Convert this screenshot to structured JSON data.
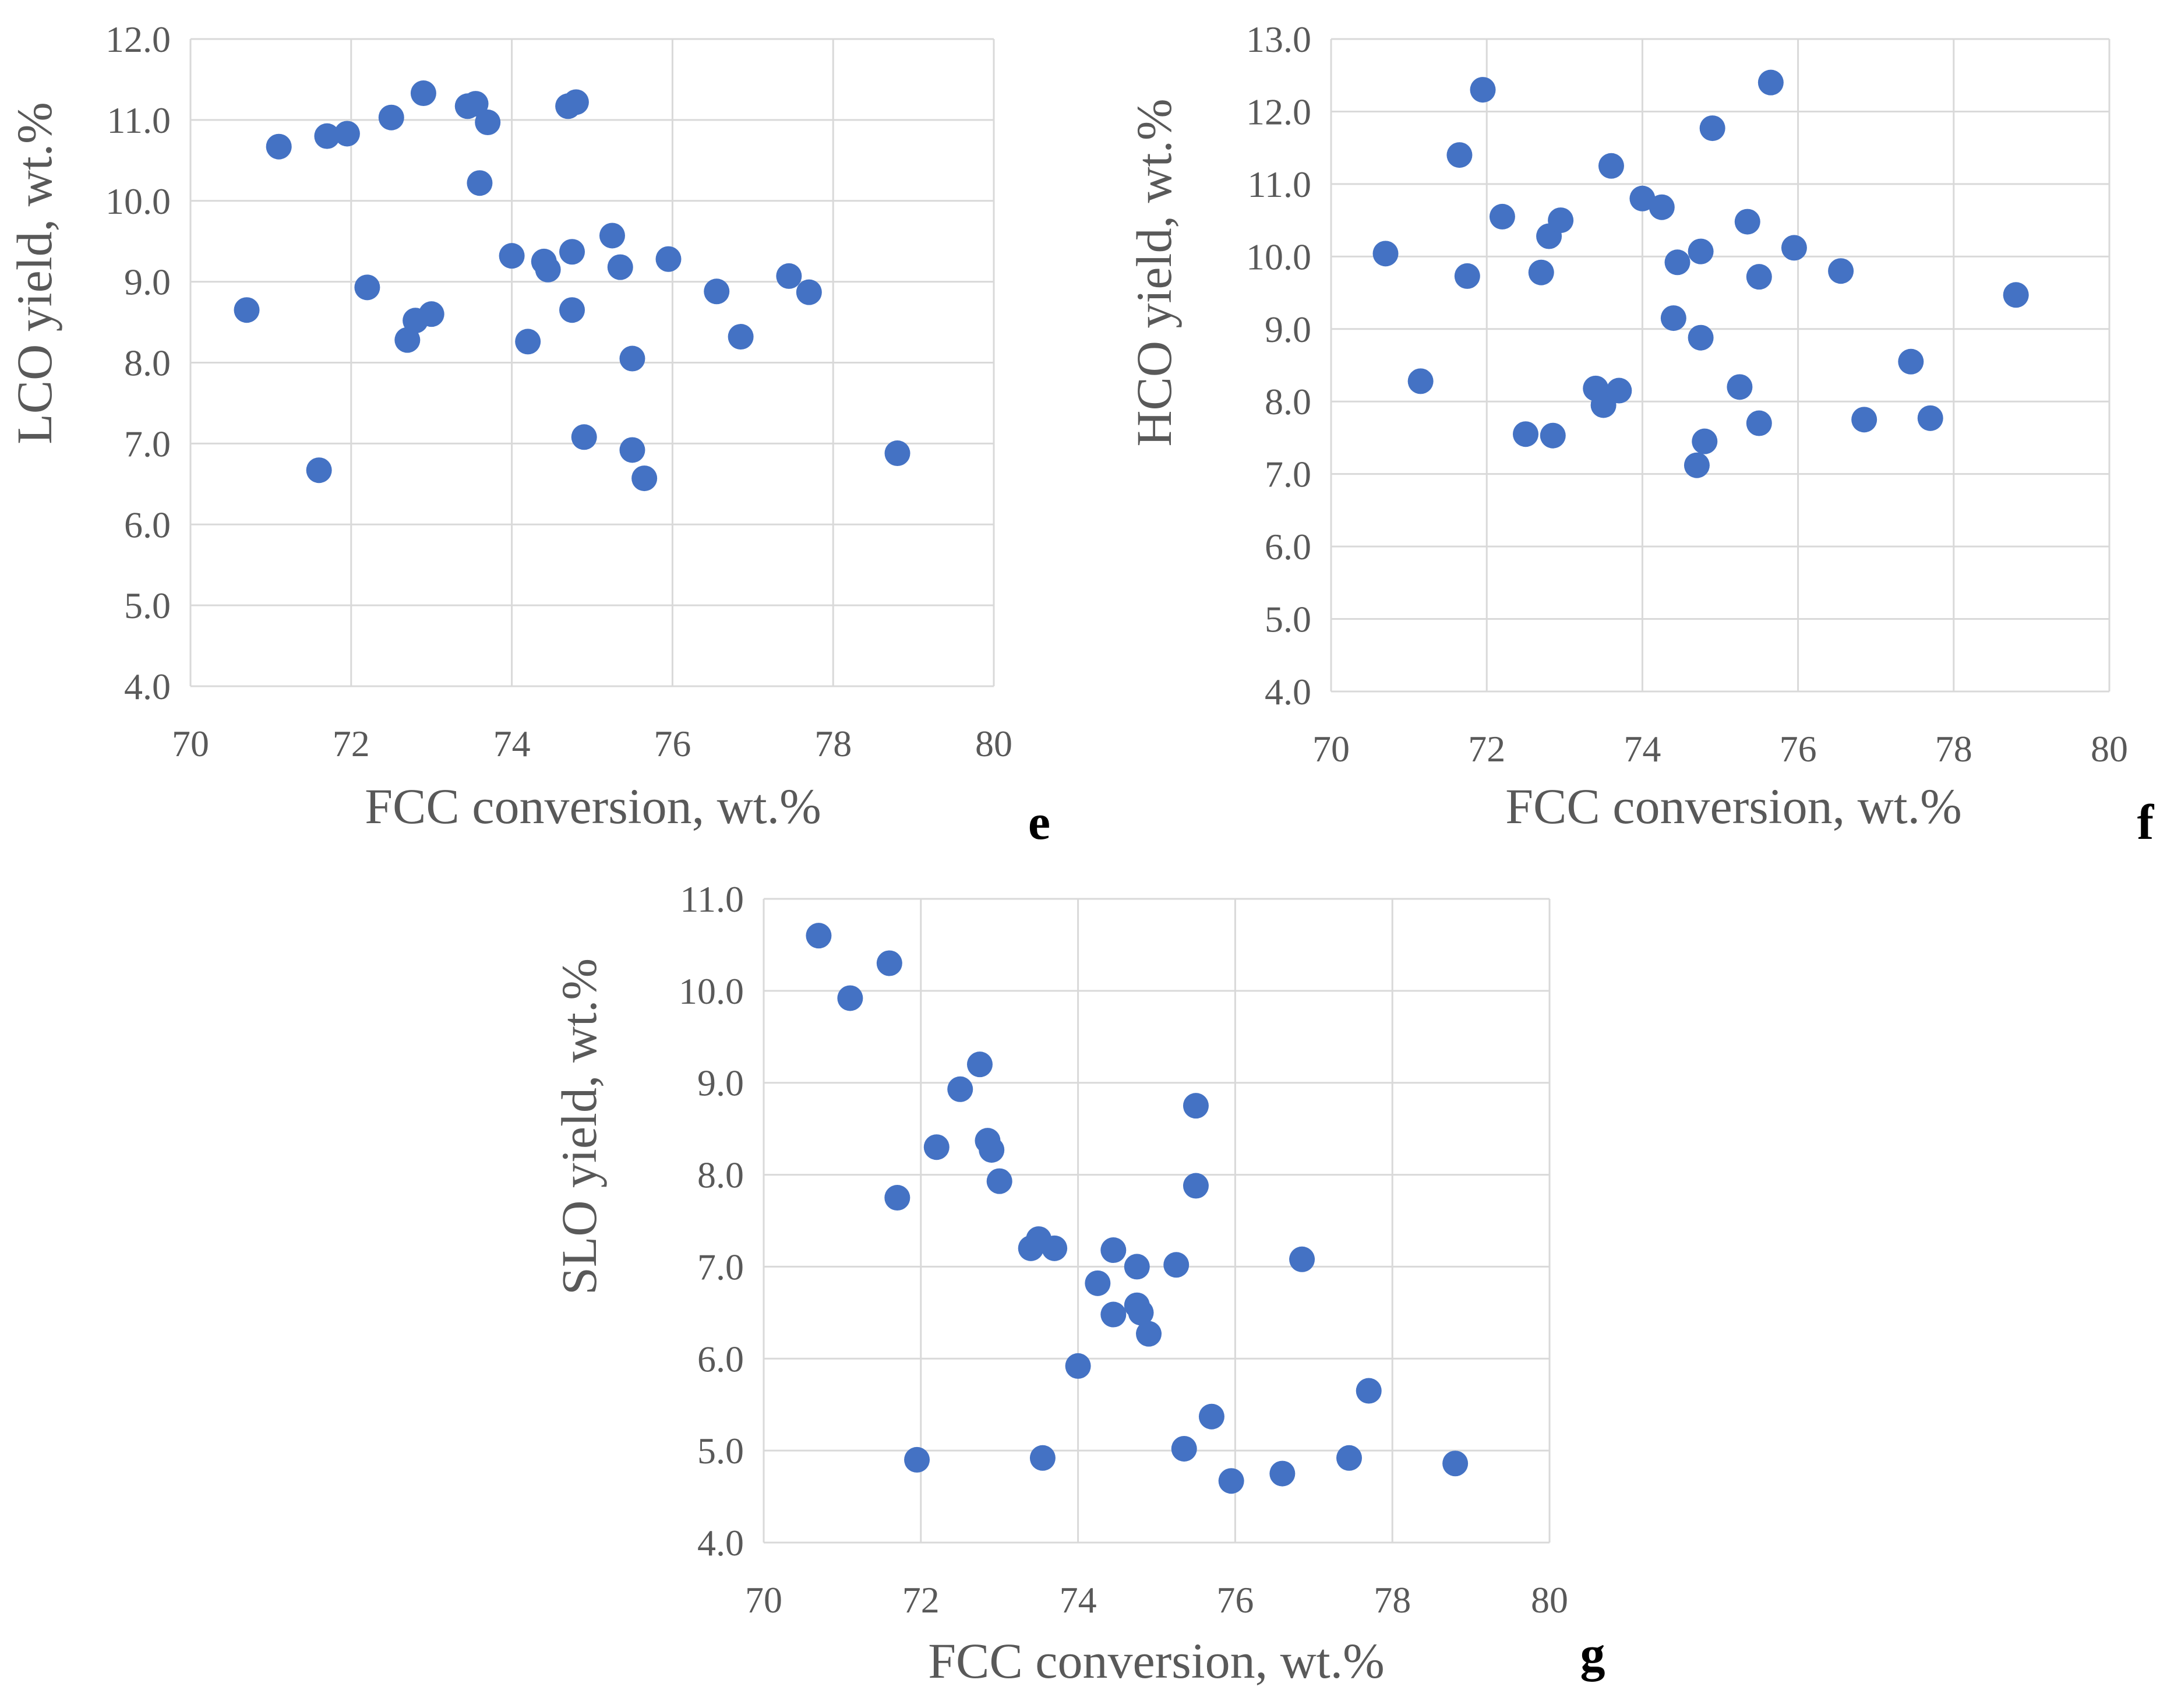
{
  "style": {
    "marker_color": "#4472C4",
    "axis_color": "#D9D9D9",
    "grid_color": "#D9D9D9",
    "text_color": "#595959",
    "letter_color": "#000000"
  },
  "chart_data": [
    {
      "id": "e",
      "type": "scatter",
      "panel_label": "e",
      "xlabel": "FCC conversion, wt.%",
      "ylabel": "LCO yield, wt.%",
      "xlim": [
        70,
        80
      ],
      "ylim": [
        4.0,
        12.0
      ],
      "x_ticks": [
        "70",
        "72",
        "74",
        "76",
        "78",
        "80"
      ],
      "y_ticks": [
        "4.0",
        "5.0",
        "6.0",
        "7.0",
        "8.0",
        "9.0",
        "10.0",
        "11.0",
        "12.0"
      ],
      "grid": "vertical+horizontal",
      "points": [
        [
          70.7,
          8.65
        ],
        [
          71.1,
          10.67
        ],
        [
          71.6,
          6.67
        ],
        [
          71.7,
          10.8
        ],
        [
          71.95,
          10.83
        ],
        [
          72.2,
          8.93
        ],
        [
          72.5,
          11.03
        ],
        [
          72.7,
          8.28
        ],
        [
          72.8,
          8.52
        ],
        [
          72.9,
          11.33
        ],
        [
          73.0,
          8.6
        ],
        [
          73.45,
          11.17
        ],
        [
          73.55,
          11.2
        ],
        [
          73.6,
          10.22
        ],
        [
          73.7,
          10.97
        ],
        [
          74.0,
          9.32
        ],
        [
          74.2,
          8.26
        ],
        [
          74.4,
          9.25
        ],
        [
          74.45,
          9.15
        ],
        [
          74.7,
          11.17
        ],
        [
          74.75,
          9.37
        ],
        [
          74.75,
          8.65
        ],
        [
          74.8,
          11.22
        ],
        [
          74.9,
          7.08
        ],
        [
          75.25,
          9.57
        ],
        [
          75.35,
          9.18
        ],
        [
          75.5,
          6.92
        ],
        [
          75.5,
          8.05
        ],
        [
          75.65,
          6.57
        ],
        [
          75.95,
          9.28
        ],
        [
          76.55,
          8.88
        ],
        [
          76.85,
          8.32
        ],
        [
          77.45,
          9.07
        ],
        [
          77.7,
          8.87
        ],
        [
          78.8,
          6.88
        ]
      ]
    },
    {
      "id": "f",
      "type": "scatter",
      "panel_label": "f",
      "xlabel": "FCC conversion, wt.%",
      "ylabel": "HCO yield, wt.%",
      "xlim": [
        70,
        80
      ],
      "ylim": [
        4.0,
        13.0
      ],
      "x_ticks": [
        "70",
        "72",
        "74",
        "76",
        "78",
        "80"
      ],
      "y_ticks": [
        "4.0",
        "5.0",
        "6.0",
        "7.0",
        "8.0",
        "9.0",
        "10.0",
        "11.0",
        "12.0",
        "13.0"
      ],
      "grid": "vertical+horizontal",
      "points": [
        [
          70.7,
          10.04
        ],
        [
          71.15,
          8.28
        ],
        [
          71.65,
          11.4
        ],
        [
          71.75,
          9.73
        ],
        [
          71.95,
          12.3
        ],
        [
          72.2,
          10.55
        ],
        [
          72.5,
          7.55
        ],
        [
          72.7,
          9.78
        ],
        [
          72.8,
          10.28
        ],
        [
          72.85,
          7.53
        ],
        [
          72.95,
          10.5
        ],
        [
          73.4,
          8.18
        ],
        [
          73.5,
          7.95
        ],
        [
          73.6,
          11.25
        ],
        [
          73.7,
          8.15
        ],
        [
          74.0,
          10.8
        ],
        [
          74.25,
          10.68
        ],
        [
          74.4,
          9.15
        ],
        [
          74.45,
          9.92
        ],
        [
          74.7,
          7.12
        ],
        [
          74.75,
          10.07
        ],
        [
          74.75,
          8.88
        ],
        [
          74.8,
          7.45
        ],
        [
          74.9,
          11.77
        ],
        [
          75.25,
          8.2
        ],
        [
          75.35,
          10.48
        ],
        [
          75.5,
          9.72
        ],
        [
          75.5,
          7.7
        ],
        [
          75.65,
          12.4
        ],
        [
          75.95,
          10.12
        ],
        [
          76.55,
          9.8
        ],
        [
          76.85,
          7.75
        ],
        [
          77.45,
          8.55
        ],
        [
          77.7,
          7.77
        ],
        [
          78.8,
          9.47
        ]
      ]
    },
    {
      "id": "g",
      "type": "scatter",
      "panel_label": "g",
      "xlabel": "FCC conversion, wt.%",
      "ylabel": "SLO yield, wt.%",
      "xlim": [
        70,
        80
      ],
      "ylim": [
        4.0,
        11.0
      ],
      "x_ticks": [
        "70",
        "72",
        "74",
        "76",
        "78",
        "80"
      ],
      "y_ticks": [
        "4.0",
        "5.0",
        "6.0",
        "7.0",
        "8.0",
        "9.0",
        "10.0",
        "11.0"
      ],
      "grid": "vertical+horizontal",
      "points": [
        [
          70.7,
          10.6
        ],
        [
          71.1,
          9.92
        ],
        [
          71.6,
          10.3
        ],
        [
          71.7,
          7.75
        ],
        [
          71.95,
          4.9
        ],
        [
          72.2,
          8.3
        ],
        [
          72.5,
          8.93
        ],
        [
          72.75,
          9.2
        ],
        [
          72.85,
          8.37
        ],
        [
          72.9,
          8.27
        ],
        [
          73.0,
          7.93
        ],
        [
          73.4,
          7.2
        ],
        [
          73.5,
          7.3
        ],
        [
          73.55,
          4.92
        ],
        [
          73.7,
          7.2
        ],
        [
          74.0,
          5.92
        ],
        [
          74.25,
          6.82
        ],
        [
          74.45,
          6.48
        ],
        [
          74.45,
          7.18
        ],
        [
          74.75,
          7.0
        ],
        [
          74.75,
          6.58
        ],
        [
          74.8,
          6.5
        ],
        [
          74.9,
          6.27
        ],
        [
          75.25,
          7.02
        ],
        [
          75.35,
          5.02
        ],
        [
          75.5,
          7.88
        ],
        [
          75.5,
          8.75
        ],
        [
          75.7,
          5.37
        ],
        [
          75.95,
          4.67
        ],
        [
          76.6,
          4.75
        ],
        [
          76.85,
          7.08
        ],
        [
          77.45,
          4.92
        ],
        [
          77.7,
          5.65
        ],
        [
          78.8,
          4.86
        ]
      ]
    }
  ]
}
